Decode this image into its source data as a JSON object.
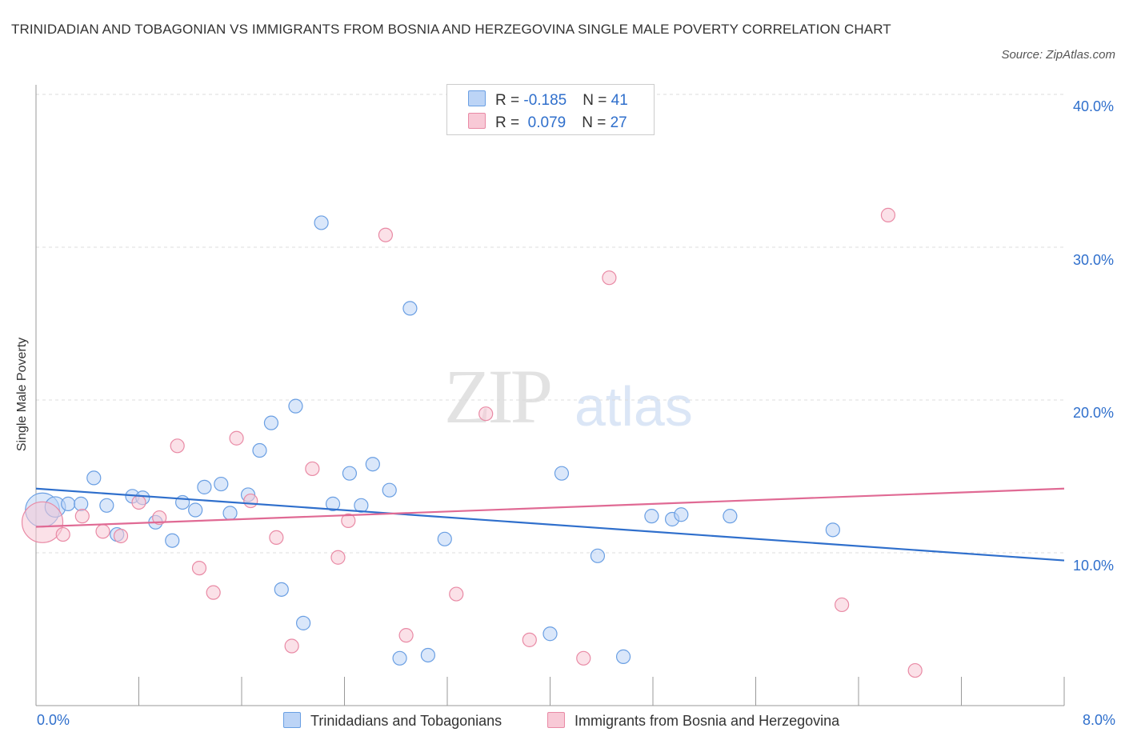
{
  "title": "TRINIDADIAN AND TOBAGONIAN VS IMMIGRANTS FROM BOSNIA AND HERZEGOVINA SINGLE MALE POVERTY CORRELATION CHART",
  "source": "Source: ZipAtlas.com",
  "watermark": {
    "part1": "ZIP",
    "part2": "atlas"
  },
  "legend": {
    "rows": [
      {
        "r_label": "R = ",
        "r_value": "-0.185",
        "n_label": "N = ",
        "n_value": "41"
      },
      {
        "r_label": "R = ",
        "r_value": " 0.079",
        "n_label": "N = ",
        "n_value": "27"
      }
    ]
  },
  "colors": {
    "blue_fill": "#bcd4f6",
    "blue_stroke": "#6a9fe3",
    "blue_line": "#2f6fcc",
    "pink_fill": "#f8c9d6",
    "pink_stroke": "#e98aa5",
    "pink_line": "#e06a94",
    "accent_text": "#2f6fcc"
  },
  "chart_data": {
    "type": "scatter",
    "title": "TRINIDADIAN AND TOBAGONIAN VS IMMIGRANTS FROM BOSNIA AND HERZEGOVINA SINGLE MALE POVERTY CORRELATION CHART",
    "xlabel": "",
    "ylabel": "Single Male Poverty",
    "xlim": [
      0,
      8
    ],
    "ylim": [
      0,
      40
    ],
    "x_tick_labels": [
      "0.0%",
      "8.0%"
    ],
    "y_ticks": [
      10,
      20,
      30,
      40
    ],
    "y_tick_labels": [
      "10.0%",
      "20.0%",
      "30.0%",
      "40.0%"
    ],
    "grid": true,
    "legend_position": "bottom",
    "series": [
      {
        "name": "Trinidadians and Tobagonians",
        "color": "#6a9fe3",
        "trend": {
          "x": [
            0,
            8
          ],
          "y": [
            14.2,
            9.5
          ]
        },
        "points": [
          [
            0.05,
            12.8,
            2.5
          ],
          [
            0.15,
            13.0,
            1.5
          ],
          [
            0.25,
            13.2,
            1
          ],
          [
            0.35,
            13.2,
            1
          ],
          [
            0.45,
            14.9,
            1
          ],
          [
            0.55,
            13.1,
            1
          ],
          [
            0.63,
            11.2,
            1
          ],
          [
            0.75,
            13.7,
            1
          ],
          [
            0.83,
            13.6,
            1
          ],
          [
            0.93,
            12.0,
            1
          ],
          [
            1.06,
            10.8,
            1
          ],
          [
            1.14,
            13.3,
            1
          ],
          [
            1.24,
            12.8,
            1
          ],
          [
            1.31,
            14.3,
            1
          ],
          [
            1.44,
            14.5,
            1
          ],
          [
            1.51,
            12.6,
            1
          ],
          [
            1.65,
            13.8,
            1
          ],
          [
            1.74,
            16.7,
            1
          ],
          [
            1.83,
            18.5,
            1
          ],
          [
            1.91,
            7.6,
            1
          ],
          [
            2.02,
            19.6,
            1
          ],
          [
            2.08,
            5.4,
            1
          ],
          [
            2.22,
            31.6,
            1
          ],
          [
            2.31,
            13.2,
            1
          ],
          [
            2.44,
            15.2,
            1
          ],
          [
            2.53,
            13.1,
            1
          ],
          [
            2.62,
            15.8,
            1
          ],
          [
            2.75,
            14.1,
            1
          ],
          [
            2.83,
            3.1,
            1
          ],
          [
            2.91,
            26.0,
            1
          ],
          [
            3.05,
            3.3,
            1
          ],
          [
            3.18,
            10.9,
            1
          ],
          [
            4.0,
            4.7,
            1
          ],
          [
            4.09,
            15.2,
            1
          ],
          [
            4.37,
            9.8,
            1
          ],
          [
            4.57,
            3.2,
            1
          ],
          [
            4.79,
            12.4,
            1
          ],
          [
            4.95,
            12.2,
            1
          ],
          [
            5.02,
            12.5,
            1
          ],
          [
            5.4,
            12.4,
            1
          ],
          [
            6.2,
            11.5,
            1
          ]
        ]
      },
      {
        "name": "Immigrants from Bosnia and Herzegovina",
        "color": "#e98aa5",
        "trend": {
          "x": [
            0,
            8
          ],
          "y": [
            11.7,
            14.2
          ]
        },
        "points": [
          [
            0.05,
            12.0,
            3
          ],
          [
            0.21,
            11.2,
            1
          ],
          [
            0.36,
            12.4,
            1
          ],
          [
            0.52,
            11.4,
            1
          ],
          [
            0.66,
            11.1,
            1
          ],
          [
            0.8,
            13.3,
            1
          ],
          [
            0.96,
            12.3,
            1
          ],
          [
            1.1,
            17.0,
            1
          ],
          [
            1.27,
            9.0,
            1
          ],
          [
            1.38,
            7.4,
            1
          ],
          [
            1.56,
            17.5,
            1
          ],
          [
            1.67,
            13.4,
            1
          ],
          [
            1.87,
            11.0,
            1
          ],
          [
            1.99,
            3.9,
            1
          ],
          [
            2.15,
            15.5,
            1
          ],
          [
            2.35,
            9.7,
            1
          ],
          [
            2.43,
            12.1,
            1
          ],
          [
            2.72,
            30.8,
            1
          ],
          [
            2.88,
            4.6,
            1
          ],
          [
            3.27,
            7.3,
            1
          ],
          [
            3.5,
            19.1,
            1
          ],
          [
            3.84,
            4.3,
            1
          ],
          [
            4.26,
            3.1,
            1
          ],
          [
            4.46,
            28.0,
            1
          ],
          [
            6.27,
            6.6,
            1
          ],
          [
            6.63,
            32.1,
            1
          ],
          [
            6.84,
            2.3,
            1
          ]
        ]
      }
    ]
  },
  "bottom_legend": {
    "item1": "Trinidadians and Tobagonians",
    "item2": "Immigrants from Bosnia and Herzegovina"
  }
}
